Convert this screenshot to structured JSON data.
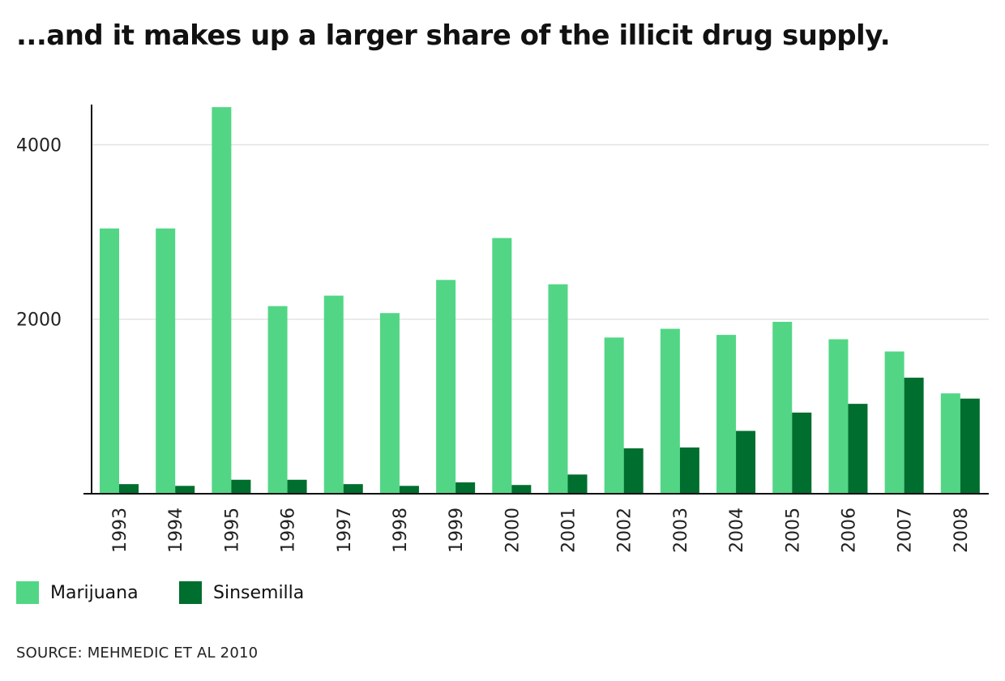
{
  "title": "...and it makes up a larger share of the illicit drug supply.",
  "source": "SOURCE: MEHMEDIC ET AL 2010",
  "colors": {
    "marijuana": "#52d685",
    "sinsemilla": "#006e2e",
    "grid": "#e3e3e3",
    "axis": "#111111"
  },
  "chart_data": {
    "type": "bar",
    "title": "...and it makes up a larger share of the illicit drug supply.",
    "xlabel": "",
    "ylabel": "",
    "ylim": [
      0,
      4450
    ],
    "yticks": [
      2000,
      4000
    ],
    "grid": true,
    "legend_position": "bottom-left",
    "categories": [
      "1993",
      "1994",
      "1995",
      "1996",
      "1997",
      "1998",
      "1999",
      "2000",
      "2001",
      "2002",
      "2003",
      "2004",
      "2005",
      "2006",
      "2007",
      "2008"
    ],
    "series": [
      {
        "name": "Marijuana",
        "color": "#52d685",
        "values": [
          3040,
          3040,
          4430,
          2150,
          2270,
          2070,
          2450,
          2930,
          2400,
          1790,
          1890,
          1820,
          1970,
          1770,
          1630,
          1150
        ]
      },
      {
        "name": "Sinsemilla",
        "color": "#006e2e",
        "values": [
          110,
          90,
          160,
          160,
          110,
          90,
          130,
          100,
          220,
          520,
          530,
          720,
          930,
          1030,
          1330,
          1090
        ]
      }
    ]
  }
}
